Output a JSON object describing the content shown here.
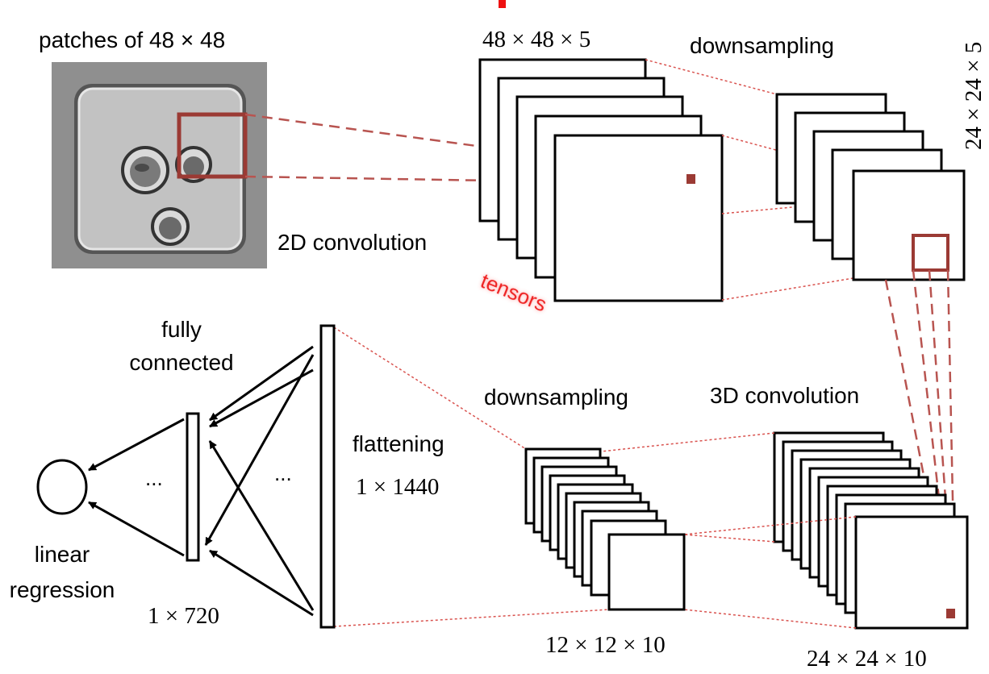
{
  "labels": {
    "patches": "patches of 48 × 48",
    "conv2d_dims": "48 × 48 × 5",
    "downsampling_top": "downsampling",
    "right_dims": "24 × 24 × 5",
    "conv2d": "2D convolution",
    "tensors": "tensors",
    "fully_line1": "fully",
    "fully_line2": "connected",
    "downsampling_bottom": "downsampling",
    "conv3d": "3D convolution",
    "flattening": "flattening",
    "flat_dims": "1 × 1440",
    "ellipsis_left": "...",
    "ellipsis_right": "...",
    "linreg_line1": "linear",
    "linreg_line2": "regression",
    "fc_dims": "1 × 720",
    "down_dims": "12 × 12 × 10",
    "conv3d_dims": "24 × 24 × 10"
  },
  "colors": {
    "stroke": "#000000",
    "connector": "#d9534f",
    "highlight": "#9b3a34",
    "tensors_text": "#ee2222",
    "micrograph_bg": "#8f8f8f",
    "micrograph_well": "#c2c2c2"
  }
}
